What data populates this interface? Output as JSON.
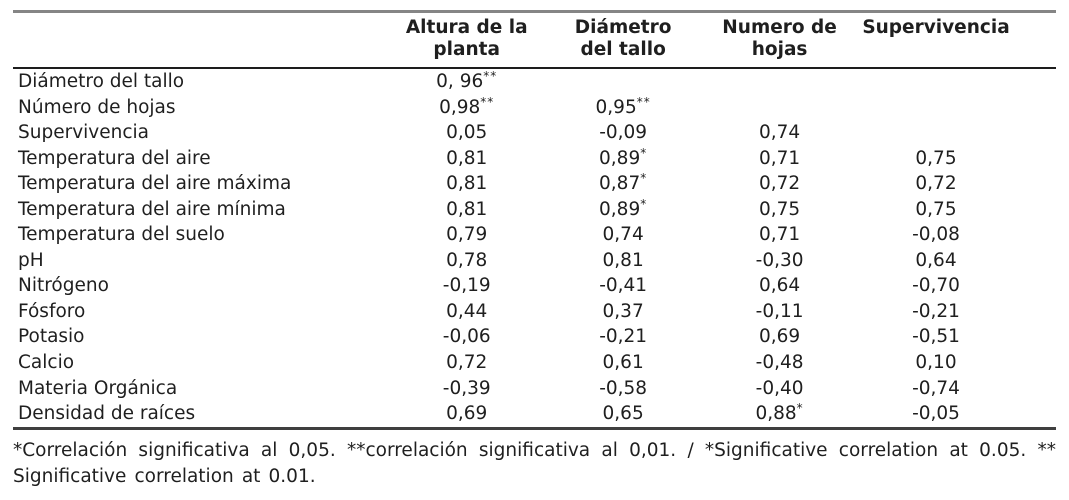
{
  "table": {
    "headers": [
      {
        "l1": "Altura de la",
        "l2": "planta"
      },
      {
        "l1": "Diámetro",
        "l2": "del tallo"
      },
      {
        "l1": "Numero de",
        "l2": "hojas"
      },
      {
        "l1": "Supervivencia",
        "l2": ""
      }
    ],
    "rows": [
      {
        "label": "Diámetro del tallo",
        "c": [
          {
            "v": "0, 96",
            "s": "**"
          },
          {
            "v": "",
            "s": ""
          },
          {
            "v": "",
            "s": ""
          },
          {
            "v": "",
            "s": ""
          }
        ]
      },
      {
        "label": "Número de hojas",
        "c": [
          {
            "v": "0,98",
            "s": "**"
          },
          {
            "v": "0,95",
            "s": "**"
          },
          {
            "v": "",
            "s": ""
          },
          {
            "v": "",
            "s": ""
          }
        ]
      },
      {
        "label": "Supervivencia",
        "c": [
          {
            "v": "0,05",
            "s": ""
          },
          {
            "v": "-0,09",
            "s": ""
          },
          {
            "v": "0,74",
            "s": ""
          },
          {
            "v": "",
            "s": ""
          }
        ]
      },
      {
        "label": "Temperatura del aire",
        "c": [
          {
            "v": "0,81",
            "s": ""
          },
          {
            "v": "0,89",
            "s": "*"
          },
          {
            "v": "0,71",
            "s": ""
          },
          {
            "v": "0,75",
            "s": ""
          }
        ]
      },
      {
        "label": "Temperatura del aire máxima",
        "c": [
          {
            "v": "0,81",
            "s": ""
          },
          {
            "v": "0,87",
            "s": "*"
          },
          {
            "v": "0,72",
            "s": ""
          },
          {
            "v": "0,72",
            "s": ""
          }
        ]
      },
      {
        "label": "Temperatura del aire mínima",
        "c": [
          {
            "v": "0,81",
            "s": ""
          },
          {
            "v": "0,89",
            "s": "*"
          },
          {
            "v": "0,75",
            "s": ""
          },
          {
            "v": "0,75",
            "s": ""
          }
        ]
      },
      {
        "label": "Temperatura del suelo",
        "c": [
          {
            "v": "0,79",
            "s": ""
          },
          {
            "v": "0,74",
            "s": ""
          },
          {
            "v": "0,71",
            "s": ""
          },
          {
            "v": "-0,08",
            "s": ""
          }
        ]
      },
      {
        "label": "pH",
        "c": [
          {
            "v": "0,78",
            "s": ""
          },
          {
            "v": "0,81",
            "s": ""
          },
          {
            "v": "-0,30",
            "s": ""
          },
          {
            "v": "0,64",
            "s": ""
          }
        ]
      },
      {
        "label": "Nitrógeno",
        "c": [
          {
            "v": "-0,19",
            "s": ""
          },
          {
            "v": "-0,41",
            "s": ""
          },
          {
            "v": "0,64",
            "s": ""
          },
          {
            "v": "-0,70",
            "s": ""
          }
        ]
      },
      {
        "label": "Fósforo",
        "c": [
          {
            "v": "0,44",
            "s": ""
          },
          {
            "v": "0,37",
            "s": ""
          },
          {
            "v": "-0,11",
            "s": ""
          },
          {
            "v": "-0,21",
            "s": ""
          }
        ]
      },
      {
        "label": "Potasio",
        "c": [
          {
            "v": "-0,06",
            "s": ""
          },
          {
            "v": "-0,21",
            "s": ""
          },
          {
            "v": "0,69",
            "s": ""
          },
          {
            "v": "-0,51",
            "s": ""
          }
        ]
      },
      {
        "label": "Calcio",
        "c": [
          {
            "v": "0,72",
            "s": ""
          },
          {
            "v": "0,61",
            "s": ""
          },
          {
            "v": "-0,48",
            "s": ""
          },
          {
            "v": "0,10",
            "s": ""
          }
        ]
      },
      {
        "label": "Materia Orgánica",
        "c": [
          {
            "v": "-0,39",
            "s": ""
          },
          {
            "v": "-0,58",
            "s": ""
          },
          {
            "v": "-0,40",
            "s": ""
          },
          {
            "v": "-0,74",
            "s": ""
          }
        ]
      },
      {
        "label": "Densidad de raíces",
        "c": [
          {
            "v": "0,69",
            "s": ""
          },
          {
            "v": "0,65",
            "s": ""
          },
          {
            "v": "0,88",
            "s": "*"
          },
          {
            "v": "-0,05",
            "s": ""
          }
        ]
      }
    ]
  },
  "footnote": "*Correlación significativa al 0,05. **correlación significativa al 0,01. / *Significative correlation at 0.05. ** Significative correlation at 0.01.",
  "colors": {
    "text": "#1f1f1f",
    "rule_top": "#858585",
    "rule_header": "#1d1d1d",
    "rule_bottom": "#3f3f3f",
    "rule_faint": "#e2e2e2"
  }
}
